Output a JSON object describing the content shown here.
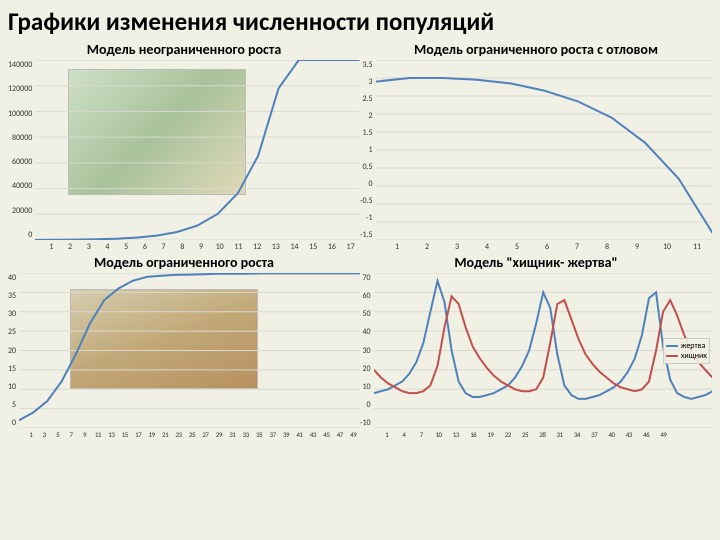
{
  "page_title": "Графики изменения численности популяций",
  "background_color": "#f0f0e4",
  "chart1": {
    "title": "Модель неограниченного роста",
    "type": "line",
    "line_color": "#4f81bd",
    "line_width": 2,
    "yticks": [
      "140000",
      "120000",
      "100000",
      "80000",
      "60000",
      "40000",
      "20000",
      "0"
    ],
    "xticks": [
      "1",
      "2",
      "3",
      "4",
      "5",
      "6",
      "7",
      "8",
      "9",
      "10",
      "11",
      "12",
      "13",
      "14",
      "15",
      "16",
      "17"
    ],
    "xlim": [
      1,
      17
    ],
    "ylim": [
      0,
      140000
    ],
    "values": [
      100,
      180,
      320,
      580,
      1050,
      1900,
      3400,
      6200,
      11200,
      20200,
      36400,
      65600,
      118000,
      140000,
      140000,
      140000,
      140000
    ],
    "grid_color": "#d9d9d0",
    "inset_bg": "#cfe0c7"
  },
  "chart2": {
    "title": "Модель ограниченного роста с отловом",
    "type": "line",
    "line_color": "#4f81bd",
    "line_width": 2,
    "yticks": [
      "3.5",
      "3",
      "2.5",
      "2",
      "1.5",
      "1",
      "0.5",
      "0",
      "-0.5",
      "-1",
      "-1.5"
    ],
    "xticks": [
      "1",
      "2",
      "3",
      "4",
      "5",
      "6",
      "7",
      "8",
      "9",
      "10",
      "11"
    ],
    "xlim": [
      1,
      11
    ],
    "ylim": [
      -1.5,
      3.5
    ],
    "values": [
      2.9,
      3.0,
      3.0,
      2.95,
      2.85,
      2.65,
      2.35,
      1.9,
      1.2,
      0.2,
      -1.3
    ],
    "grid_color": "#d9d9d0"
  },
  "chart3": {
    "title": "Модель ограниченного роста",
    "type": "line",
    "line_color": "#4f81bd",
    "line_width": 2,
    "yticks": [
      "40",
      "35",
      "30",
      "25",
      "20",
      "15",
      "10",
      "5",
      "0"
    ],
    "xticks": [
      "1",
      "3",
      "5",
      "7",
      "9",
      "11",
      "13",
      "15",
      "17",
      "19",
      "21",
      "23",
      "25",
      "27",
      "29",
      "31",
      "33",
      "35",
      "37",
      "39",
      "41",
      "43",
      "45",
      "47",
      "49"
    ],
    "xlim": [
      1,
      49
    ],
    "ylim": [
      0,
      40
    ],
    "values": [
      2,
      4,
      7,
      12,
      19,
      27,
      33,
      36,
      38,
      39,
      39.3,
      39.5,
      39.6,
      39.7,
      39.8,
      39.8,
      39.8,
      39.9,
      39.9,
      39.9,
      39.9,
      39.9,
      39.9,
      39.9,
      39.9
    ],
    "grid_color": "#d9d9d0",
    "inset_bg": "#d6ceaf"
  },
  "chart4": {
    "title": "Модель \"хищник- жертва\"",
    "type": "line",
    "yticks": [
      "70",
      "60",
      "50",
      "40",
      "30",
      "20",
      "10",
      "0",
      "-10"
    ],
    "xticks": [
      "1",
      "4",
      "7",
      "10",
      "13",
      "16",
      "19",
      "22",
      "25",
      "28",
      "31",
      "34",
      "37",
      "40",
      "43",
      "46",
      "49"
    ],
    "xlim": [
      1,
      49
    ],
    "ylim": [
      -10,
      70
    ],
    "grid_color": "#d9d9d0",
    "series": [
      {
        "name": "жертва",
        "color": "#4f81bd",
        "line_width": 2,
        "values": [
          8,
          9,
          10,
          12,
          14,
          18,
          24,
          34,
          50,
          66,
          55,
          30,
          14,
          8,
          6,
          6,
          7,
          8,
          10,
          12,
          16,
          22,
          30,
          44,
          60,
          52,
          28,
          12,
          7,
          5,
          5,
          6,
          7,
          9,
          11,
          14,
          19,
          26,
          38,
          57,
          60,
          32,
          15,
          8,
          6,
          5,
          6,
          7,
          9
        ]
      },
      {
        "name": "хищник",
        "color": "#c0504d",
        "line_width": 2,
        "values": [
          20,
          16,
          13,
          11,
          9,
          8,
          8,
          9,
          12,
          22,
          42,
          58,
          54,
          42,
          32,
          26,
          21,
          17,
          14,
          12,
          10,
          9,
          9,
          10,
          16,
          34,
          54,
          56,
          46,
          36,
          28,
          23,
          19,
          16,
          13,
          11,
          10,
          9,
          10,
          14,
          30,
          50,
          56,
          48,
          38,
          30,
          24,
          20,
          16
        ]
      }
    ],
    "legend": [
      {
        "label": "жертва",
        "color": "#4f81bd"
      },
      {
        "label": "хищник",
        "color": "#c0504d"
      }
    ]
  }
}
